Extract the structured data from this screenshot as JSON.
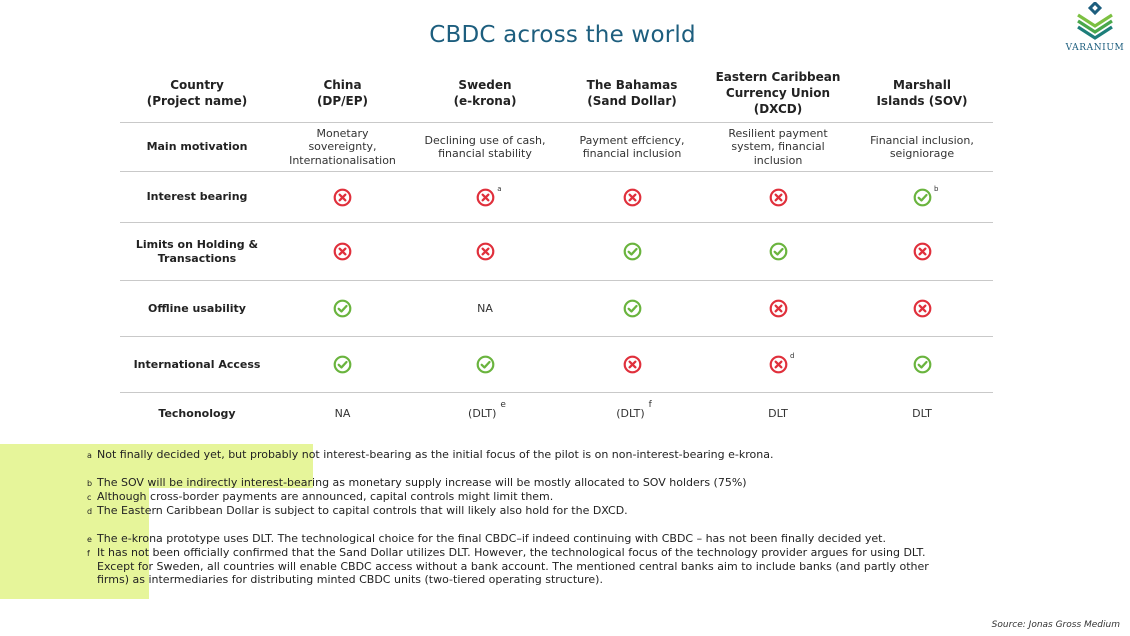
{
  "title": "CBDC across the world",
  "logo": {
    "text": "VARANIUM"
  },
  "table": {
    "headers": [
      "Country\n(Project name)",
      "China\n(DP/EP)",
      "Sweden\n(e-krona)",
      "The Bahamas\n(Sand Dollar)",
      "Eastern Caribbean\nCurrency Union\n(DXCD)",
      "Marshall\nIslands (SOV)"
    ],
    "motivation": {
      "label": "Main motivation",
      "values": [
        "Monetary\nsovereignty,\nInternationalisation",
        "Declining use of cash,\nfinancial stability",
        "Payment effciency,\nfinancial inclusion",
        "Resilient payment\nsystem, financial\ninclusion",
        "Financial inclusion,\nseigniorage"
      ]
    },
    "interest": {
      "label": "Interest bearing",
      "values": [
        "no",
        "no",
        "no",
        "no",
        "yes"
      ],
      "notes": [
        "",
        "a",
        "",
        "",
        "b"
      ]
    },
    "limits": {
      "label": "Limits on Holding &\nTransactions",
      "values": [
        "no",
        "no",
        "yes",
        "yes",
        "no"
      ],
      "notes": [
        "",
        "",
        "",
        "",
        ""
      ]
    },
    "offline": {
      "label": "Offline usability",
      "values": [
        "yes",
        "NA",
        "yes",
        "no",
        "no"
      ],
      "notes": [
        "",
        "",
        "",
        "",
        ""
      ]
    },
    "international": {
      "label": "International Access",
      "values": [
        "yes",
        "yes",
        "no",
        "no",
        "yes"
      ],
      "notes": [
        "",
        "",
        "",
        "d",
        ""
      ]
    },
    "technology": {
      "label": "Techonology",
      "values": [
        "NA",
        "(DLT)",
        "(DLT)",
        "DLT",
        "DLT"
      ],
      "notes": [
        "",
        "e",
        "f",
        "",
        ""
      ]
    }
  },
  "footnotes": {
    "a": {
      "key": "a",
      "text": "Not finally decided yet, but probably not interest-bearing as the initial focus of the pilot is on non-interest-bearing e-krona."
    },
    "b": {
      "key": "b",
      "text": "The SOV will be indirectly interest-bearing as monetary supply increase will be mostly allocated to SOV holders (75%)"
    },
    "c": {
      "key": "c",
      "text": "Although cross-border payments are announced, capital controls might limit them."
    },
    "d": {
      "key": "d",
      "text": "The Eastern Caribbean Dollar is subject to capital controls that will likely also hold for the DXCD."
    },
    "e": {
      "key": "e",
      "text": "The e-krona prototype uses DLT. The technological choice for the final CBDC–if indeed continuing with CBDC – has not been finally decided yet."
    },
    "f": {
      "key": "f",
      "text": "It has not been officially confirmed that the Sand Dollar utilizes DLT. However, the technological focus of the technology provider argues for using DLT. Except for Sweden, all countries will enable CBDC access without a bank account. The mentioned central banks aim to include banks (and partly other firms) as intermediaries for distributing minted CBDC units (two-tiered operating structure)."
    }
  },
  "source": "Source: Jonas Gross Medium",
  "colors": {
    "title": "#1d5e7e",
    "no": "#e0303c",
    "yes": "#6ab43e",
    "highlight": "#e6f59a"
  }
}
